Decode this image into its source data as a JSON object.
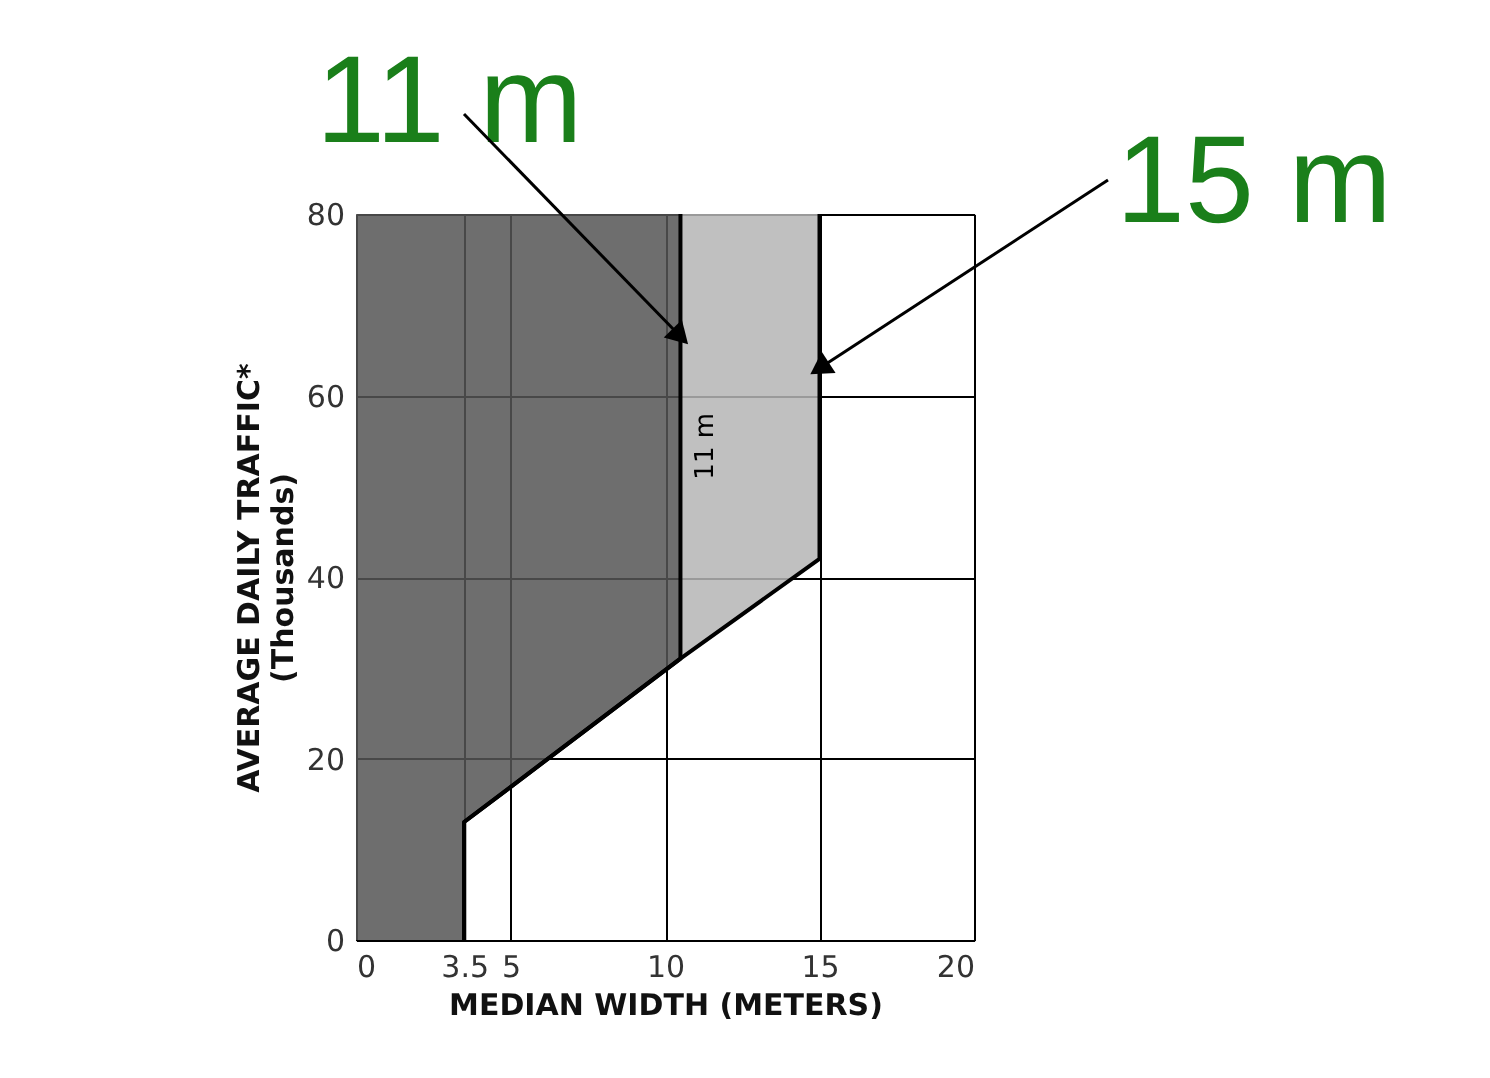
{
  "chart_data": {
    "type": "area",
    "orientation": "horizontal",
    "stacked": true,
    "x": [
      0,
      13,
      31,
      42,
      80
    ],
    "series": [
      {
        "color": "#555555",
        "values": [
          3.5,
          3.5,
          10.5,
          10.5,
          10.5
        ]
      },
      {
        "color": "#b5b5b5",
        "values": [
          0,
          0,
          0,
          4.5,
          4.5
        ]
      }
    ],
    "xlabel": "MEDIAN WIDTH (METERS)",
    "ylabel": "AVERAGE DAILY TRAFFIC*\n(Thousands)",
    "xlim": [
      0,
      20
    ],
    "xticks": [
      0,
      {
        "value": 3.5,
        "label": "3.5"
      },
      5,
      10,
      15,
      20
    ],
    "ylim": [
      0,
      80
    ],
    "yticks": [
      0,
      20,
      40,
      60,
      80
    ],
    "grid": true,
    "annotations": [
      {
        "text": "11 m",
        "x": 10.5,
        "y": 66.5
      },
      {
        "text": "15 m",
        "x": 15,
        "y": 63
      },
      "11 m"
    ]
  }
}
